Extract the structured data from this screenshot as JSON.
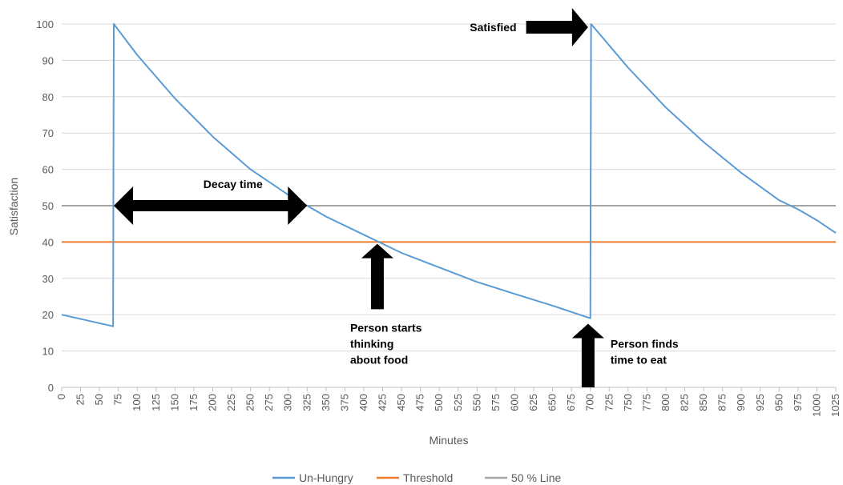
{
  "chart_data": {
    "type": "line",
    "xlabel": "Minutes",
    "ylabel": "Satisfaction",
    "xlim": [
      0,
      1025
    ],
    "ylim": [
      0,
      100
    ],
    "x_ticks": [
      0,
      25,
      50,
      75,
      100,
      125,
      150,
      175,
      200,
      225,
      250,
      275,
      300,
      325,
      350,
      375,
      400,
      425,
      450,
      475,
      500,
      525,
      550,
      575,
      600,
      625,
      650,
      675,
      700,
      725,
      750,
      775,
      800,
      825,
      850,
      875,
      900,
      925,
      950,
      975,
      1000,
      1025
    ],
    "y_ticks": [
      0,
      10,
      20,
      30,
      40,
      50,
      60,
      70,
      80,
      90,
      100
    ],
    "grid": "horizontal",
    "legend_position": "bottom",
    "series": [
      {
        "name": "Un-Hungry",
        "color": "#5b9bd5",
        "points": [
          [
            0,
            20
          ],
          [
            68,
            16.8
          ],
          [
            69,
            100
          ],
          [
            100,
            91.5
          ],
          [
            150,
            79.5
          ],
          [
            200,
            69
          ],
          [
            250,
            60
          ],
          [
            300,
            53
          ],
          [
            325,
            50
          ],
          [
            350,
            47
          ],
          [
            400,
            42
          ],
          [
            420,
            40
          ],
          [
            450,
            37
          ],
          [
            500,
            33
          ],
          [
            550,
            29
          ],
          [
            600,
            25.7
          ],
          [
            650,
            22.5
          ],
          [
            700,
            19
          ],
          [
            701,
            100
          ],
          [
            750,
            88
          ],
          [
            800,
            77
          ],
          [
            850,
            67.5
          ],
          [
            900,
            59
          ],
          [
            950,
            51.5
          ],
          [
            975,
            49
          ],
          [
            1000,
            46
          ],
          [
            1025,
            42.5
          ]
        ]
      },
      {
        "name": "Threshold",
        "color": "#ed7d31",
        "points": [
          [
            0,
            40
          ],
          [
            1025,
            40
          ]
        ]
      },
      {
        "name": "50 % Line",
        "color": "#a5a5a5",
        "points": [
          [
            0,
            50
          ],
          [
            1025,
            50
          ]
        ]
      }
    ],
    "annotations": [
      {
        "text": "Decay time",
        "kind": "double-arrow",
        "x_from": 69,
        "x_to": 325,
        "y": 50,
        "label_x": 195,
        "label_y": 56
      },
      {
        "text": "Satisfied",
        "kind": "arrow-right",
        "x_from": 615,
        "x_to": 697,
        "y": 100,
        "label_x": 560,
        "label_y": 100
      },
      {
        "lines": [
          "Person starts",
          "thinking",
          "about food"
        ],
        "kind": "arrow-up",
        "x": 418,
        "y_from": 21.5,
        "y_to": 39.5
      },
      {
        "lines": [
          "Person finds",
          "time to eat"
        ],
        "kind": "arrow-up",
        "x": 697,
        "y_from": 0,
        "y_to": 17.5
      }
    ]
  }
}
